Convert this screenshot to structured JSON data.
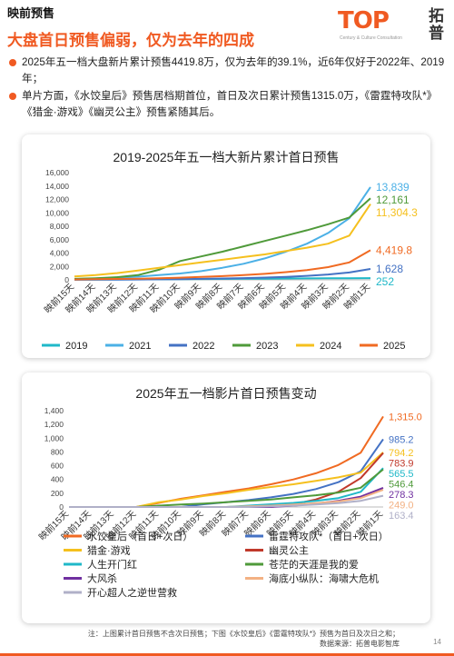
{
  "header": {
    "section_title": "映前预售",
    "headline": "大盘首日预售偏弱，仅为去年的四成",
    "logo_text": "TOP",
    "logo_cn": "拓普",
    "logo_sub": "Century & Culture Consultation"
  },
  "bullets": [
    "2025年五一档大盘新片累计预售4419.8万，仅为去年的39.1%，近6年仅好于2022年、2019年；",
    "单片方面，《水饺皇后》预售居档期首位，首日及次日累计预售1315.0万，《雷霆特攻队*》《猎金·游戏》《幽灵公主》预售紧随其后。"
  ],
  "colors": {
    "accent": "#f05a22"
  },
  "chart_data": [
    {
      "type": "line",
      "title": "2019-2025年五一档大新片累计首日预售",
      "x": [
        "映前15天",
        "映前14天",
        "映前13天",
        "映前12天",
        "映前11天",
        "映前10天",
        "映前9天",
        "映前8天",
        "映前7天",
        "映前6天",
        "映前5天",
        "映前4天",
        "映前3天",
        "映前2天",
        "映前1天"
      ],
      "ylim": [
        0,
        16000
      ],
      "yticks": [
        "0",
        "2,000",
        "4,000",
        "6,000",
        "8,000",
        "10,000",
        "12,000",
        "14,000",
        "16,000"
      ],
      "grid": false,
      "legend_position": "bottom",
      "series": [
        {
          "name": "2019",
          "color": "#1fb8c8",
          "values": [
            30,
            40,
            55,
            70,
            85,
            100,
            120,
            140,
            160,
            180,
            200,
            215,
            230,
            240,
            252
          ],
          "end_label": "252"
        },
        {
          "name": "2021",
          "color": "#4bb0e6",
          "values": [
            120,
            200,
            320,
            480,
            700,
            950,
            1300,
            1800,
            2400,
            3200,
            4200,
            5400,
            7000,
            9200,
            13839
          ],
          "end_label": "13,839"
        },
        {
          "name": "2022",
          "color": "#4472c4",
          "values": [
            20,
            30,
            40,
            60,
            80,
            110,
            150,
            200,
            260,
            340,
            450,
            600,
            800,
            1100,
            1628
          ],
          "end_label": "1,628"
        },
        {
          "name": "2023",
          "color": "#4f9a3a",
          "values": [
            150,
            250,
            400,
            700,
            1500,
            2800,
            3500,
            4200,
            5000,
            5800,
            6600,
            7400,
            8300,
            9300,
            12161
          ],
          "end_label": "12,161"
        },
        {
          "name": "2024",
          "color": "#f5c01e",
          "values": [
            500,
            700,
            1000,
            1400,
            1800,
            2200,
            2600,
            3000,
            3400,
            3800,
            4300,
            4800,
            5400,
            6600,
            11304.3
          ],
          "end_label": "11,304.3"
        },
        {
          "name": "2025",
          "color": "#f06a22",
          "values": [
            60,
            90,
            130,
            180,
            250,
            330,
            430,
            550,
            700,
            900,
            1150,
            1450,
            1900,
            2600,
            4419.8
          ],
          "end_label": "4,419.8"
        }
      ]
    },
    {
      "type": "line",
      "title": "2025年五一档影片首日预售变动",
      "x": [
        "映前15天",
        "映前14天",
        "映前13天",
        "映前12天",
        "映前11天",
        "映前10天",
        "映前9天",
        "映前8天",
        "映前7天",
        "映前6天",
        "映前5天",
        "映前4天",
        "映前3天",
        "映前2天",
        "映前1天"
      ],
      "ylim": [
        0,
        1400
      ],
      "yticks": [
        "0",
        "200",
        "400",
        "600",
        "800",
        "1,000",
        "1,200",
        "1,400"
      ],
      "grid": false,
      "legend_position": "bottom",
      "series": [
        {
          "name": "水饺皇后（首日+次日）",
          "color": "#f06a22",
          "values": [
            0,
            0,
            0,
            0,
            60,
            120,
            170,
            220,
            270,
            330,
            400,
            490,
            610,
            790,
            1315
          ],
          "end_label": "1,315.0"
        },
        {
          "name": "雷霆特攻队*（首日+次日）",
          "color": "#4472c4",
          "values": [
            0,
            0,
            0,
            0,
            0,
            0,
            40,
            70,
            100,
            140,
            190,
            260,
            360,
            520,
            985.2
          ],
          "end_label": "985.2"
        },
        {
          "name": "猎金·游戏",
          "color": "#f5c01e",
          "values": [
            0,
            0,
            0,
            0,
            70,
            110,
            160,
            200,
            250,
            290,
            330,
            380,
            430,
            500,
            794.2
          ],
          "end_label": "794.2"
        },
        {
          "name": "幽灵公主",
          "color": "#c0392b",
          "values": [
            0,
            0,
            0,
            0,
            0,
            0,
            0,
            0,
            0,
            0,
            40,
            110,
            220,
            420,
            783.9
          ],
          "end_label": "783.9"
        },
        {
          "name": "人生开门红",
          "color": "#1fb8c8",
          "values": [
            0,
            0,
            0,
            0,
            0,
            0,
            0,
            0,
            20,
            40,
            60,
            90,
            130,
            220,
            565.5
          ],
          "end_label": "565.5"
        },
        {
          "name": "苍茫的天涯是我的爱",
          "color": "#4f9a3a",
          "values": [
            0,
            0,
            0,
            0,
            20,
            35,
            50,
            70,
            90,
            110,
            140,
            170,
            210,
            280,
            546.4
          ],
          "end_label": "546.4"
        },
        {
          "name": "大风杀",
          "color": "#7030a0",
          "values": [
            0,
            0,
            0,
            0,
            0,
            0,
            0,
            0,
            0,
            0,
            20,
            50,
            90,
            150,
            278.3
          ],
          "end_label": "278.3"
        },
        {
          "name": "海底小纵队：海啸大危机",
          "color": "#f3b183",
          "values": [
            0,
            0,
            0,
            0,
            0,
            0,
            0,
            0,
            10,
            20,
            35,
            55,
            80,
            130,
            249.0
          ],
          "end_label": "249.0"
        },
        {
          "name": "开心超人之逆世营救",
          "color": "#b0b0c8",
          "values": [
            0,
            0,
            0,
            0,
            0,
            0,
            0,
            0,
            0,
            10,
            20,
            35,
            55,
            90,
            163.4
          ],
          "end_label": "163.4"
        }
      ]
    }
  ],
  "footer": {
    "note_line1": "注：上图累计首日预售不含次日预售；下图《水饺皇后》《雷霆特攻队*》预售为首日及次日之和；",
    "note_line2": "数据来源：拓普电影智库",
    "page_number": "14"
  }
}
